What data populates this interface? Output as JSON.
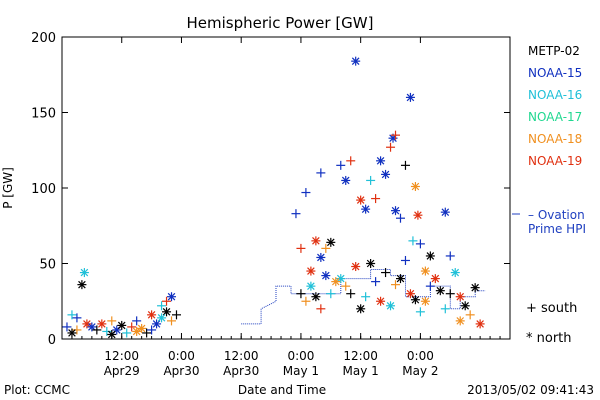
{
  "chart_data": {
    "type": "scatter",
    "title": "Hemispheric Power [GW]",
    "ylabel": "P [GW]",
    "xlabel": "Date and Time",
    "ylim": [
      0,
      200
    ],
    "y_ticks": [
      0,
      50,
      100,
      150,
      200
    ],
    "x_range_hours": [
      0,
      90
    ],
    "x_ticks": [
      {
        "h": 12,
        "top": "12:00",
        "bottom": "Apr29"
      },
      {
        "h": 24,
        "top": "0:00",
        "bottom": "Apr30"
      },
      {
        "h": 36,
        "top": "12:00",
        "bottom": "Apr30"
      },
      {
        "h": 48,
        "top": "0:00",
        "bottom": "May 1"
      },
      {
        "h": 60,
        "top": "12:00",
        "bottom": "May 1"
      },
      {
        "h": 72,
        "top": "0:00",
        "bottom": "May 2"
      }
    ],
    "series": [
      {
        "name": "METP-02",
        "color": "#000000"
      },
      {
        "name": "NOAA-15",
        "color": "#1030c0"
      },
      {
        "name": "NOAA-16",
        "color": "#20c0d8"
      },
      {
        "name": "NOAA-17",
        "color": "#20d890"
      },
      {
        "name": "NOAA-18",
        "color": "#f09020"
      },
      {
        "name": "NOAA-19",
        "color": "#e03010"
      }
    ],
    "ovation_label": [
      "– Ovation",
      "Prime HPI"
    ],
    "ovation_color": "#2040c0",
    "ovation": [
      [
        36,
        10
      ],
      [
        40,
        10
      ],
      [
        40,
        20
      ],
      [
        43,
        25
      ],
      [
        43,
        35
      ],
      [
        46,
        35
      ],
      [
        46,
        30
      ],
      [
        56,
        30
      ],
      [
        56,
        40
      ],
      [
        62,
        40
      ],
      [
        62,
        46
      ],
      [
        66,
        46
      ],
      [
        66,
        42
      ],
      [
        69,
        42
      ],
      [
        69,
        28
      ],
      [
        74,
        28
      ],
      [
        74,
        35
      ],
      [
        78,
        35
      ],
      [
        78,
        20
      ],
      [
        80,
        20
      ],
      [
        80,
        28
      ],
      [
        83,
        28
      ],
      [
        83,
        32
      ],
      [
        85,
        32
      ]
    ],
    "marker_legend": [
      {
        "symbol": "+",
        "label": "south"
      },
      {
        "symbol": "*",
        "label": "north"
      }
    ],
    "points": [
      {
        "x": 4,
        "y": 36,
        "s": "METP-02",
        "m": "*"
      },
      {
        "x": 3,
        "y": 14,
        "s": "NOAA-15",
        "m": "+"
      },
      {
        "x": 4.5,
        "y": 44,
        "s": "NOAA-16",
        "m": "*"
      },
      {
        "x": 5,
        "y": 10,
        "s": "NOAA-19",
        "m": "*"
      },
      {
        "x": 1,
        "y": 8,
        "s": "NOAA-15",
        "m": "+"
      },
      {
        "x": 2,
        "y": 16,
        "s": "NOAA-16",
        "m": "+"
      },
      {
        "x": 3,
        "y": 6,
        "s": "NOAA-18",
        "m": "+"
      },
      {
        "x": 2,
        "y": 4,
        "s": "METP-02",
        "m": "*"
      },
      {
        "x": 6,
        "y": 8,
        "s": "NOAA-15",
        "m": "*"
      },
      {
        "x": 7,
        "y": 6,
        "s": "METP-02",
        "m": "+"
      },
      {
        "x": 8,
        "y": 10,
        "s": "NOAA-19",
        "m": "*"
      },
      {
        "x": 9,
        "y": 5,
        "s": "NOAA-16",
        "m": "+"
      },
      {
        "x": 10,
        "y": 12,
        "s": "NOAA-18",
        "m": "+"
      },
      {
        "x": 11,
        "y": 6,
        "s": "NOAA-15",
        "m": "*"
      },
      {
        "x": 12,
        "y": 9,
        "s": "METP-02",
        "m": "*"
      },
      {
        "x": 13,
        "y": 4,
        "s": "NOAA-16",
        "m": "+"
      },
      {
        "x": 14,
        "y": 8,
        "s": "NOAA-19",
        "m": "+"
      },
      {
        "x": 15,
        "y": 12,
        "s": "NOAA-15",
        "m": "+"
      },
      {
        "x": 16,
        "y": 7,
        "s": "NOAA-18",
        "m": "*"
      },
      {
        "x": 17,
        "y": 4,
        "s": "METP-02",
        "m": "+"
      },
      {
        "x": 18,
        "y": 16,
        "s": "NOAA-19",
        "m": "*"
      },
      {
        "x": 19,
        "y": 10,
        "s": "NOAA-15",
        "m": "*"
      },
      {
        "x": 20,
        "y": 22,
        "s": "NOAA-16",
        "m": "+"
      },
      {
        "x": 21,
        "y": 18,
        "s": "METP-02",
        "m": "*"
      },
      {
        "x": 22,
        "y": 28,
        "s": "NOAA-15",
        "m": "*"
      },
      {
        "x": 22,
        "y": 12,
        "s": "NOAA-18",
        "m": "+"
      },
      {
        "x": 21,
        "y": 25,
        "s": "NOAA-19",
        "m": "+"
      },
      {
        "x": 20,
        "y": 14,
        "s": "NOAA-16",
        "m": "*"
      },
      {
        "x": 23,
        "y": 16,
        "s": "METP-02",
        "m": "+"
      },
      {
        "x": 18,
        "y": 6,
        "s": "NOAA-15",
        "m": "+"
      },
      {
        "x": 15,
        "y": 5,
        "s": "NOAA-18",
        "m": "*"
      },
      {
        "x": 10,
        "y": 3,
        "s": "METP-02",
        "m": "*"
      },
      {
        "x": 47,
        "y": 83,
        "s": "NOAA-15",
        "m": "+"
      },
      {
        "x": 49,
        "y": 97,
        "s": "NOAA-15",
        "m": "+"
      },
      {
        "x": 50,
        "y": 45,
        "s": "NOAA-19",
        "m": "*"
      },
      {
        "x": 48,
        "y": 60,
        "s": "NOAA-19",
        "m": "+"
      },
      {
        "x": 51,
        "y": 65,
        "s": "NOAA-19",
        "m": "*"
      },
      {
        "x": 52,
        "y": 54,
        "s": "NOAA-15",
        "m": "*"
      },
      {
        "x": 53,
        "y": 60,
        "s": "NOAA-18",
        "m": "+"
      },
      {
        "x": 54,
        "y": 64,
        "s": "METP-02",
        "m": "*"
      },
      {
        "x": 52,
        "y": 110,
        "s": "NOAA-15",
        "m": "+"
      },
      {
        "x": 56,
        "y": 115,
        "s": "NOAA-15",
        "m": "+"
      },
      {
        "x": 57,
        "y": 105,
        "s": "NOAA-15",
        "m": "*"
      },
      {
        "x": 58,
        "y": 118,
        "s": "NOAA-19",
        "m": "+"
      },
      {
        "x": 59,
        "y": 184,
        "s": "NOAA-15",
        "m": "*"
      },
      {
        "x": 60,
        "y": 92,
        "s": "NOAA-19",
        "m": "*"
      },
      {
        "x": 61,
        "y": 86,
        "s": "NOAA-15",
        "m": "*"
      },
      {
        "x": 62,
        "y": 105,
        "s": "NOAA-16",
        "m": "+"
      },
      {
        "x": 63,
        "y": 93,
        "s": "NOAA-19",
        "m": "+"
      },
      {
        "x": 64,
        "y": 118,
        "s": "NOAA-15",
        "m": "*"
      },
      {
        "x": 65,
        "y": 109,
        "s": "NOAA-15",
        "m": "*"
      },
      {
        "x": 66,
        "y": 127,
        "s": "NOAA-19",
        "m": "+"
      },
      {
        "x": 66.5,
        "y": 133,
        "s": "NOAA-15",
        "m": "*"
      },
      {
        "x": 67,
        "y": 135,
        "s": "NOAA-19",
        "m": "+"
      },
      {
        "x": 68,
        "y": 80,
        "s": "NOAA-15",
        "m": "+"
      },
      {
        "x": 69,
        "y": 115,
        "s": "METP-02",
        "m": "+"
      },
      {
        "x": 70,
        "y": 160,
        "s": "NOAA-15",
        "m": "*"
      },
      {
        "x": 71,
        "y": 101,
        "s": "NOAA-18",
        "m": "*"
      },
      {
        "x": 71.5,
        "y": 82,
        "s": "NOAA-19",
        "m": "*"
      },
      {
        "x": 72,
        "y": 63,
        "s": "NOAA-15",
        "m": "+"
      },
      {
        "x": 70.5,
        "y": 65,
        "s": "NOAA-16",
        "m": "+"
      },
      {
        "x": 73,
        "y": 45,
        "s": "NOAA-18",
        "m": "*"
      },
      {
        "x": 74,
        "y": 55,
        "s": "METP-02",
        "m": "*"
      },
      {
        "x": 67,
        "y": 85,
        "s": "NOAA-15",
        "m": "*"
      },
      {
        "x": 56,
        "y": 40,
        "s": "NOAA-16",
        "m": "*"
      },
      {
        "x": 57,
        "y": 35,
        "s": "NOAA-18",
        "m": "+"
      },
      {
        "x": 58,
        "y": 30,
        "s": "METP-02",
        "m": "+"
      },
      {
        "x": 59,
        "y": 48,
        "s": "NOAA-19",
        "m": "*"
      },
      {
        "x": 60,
        "y": 20,
        "s": "METP-02",
        "m": "*"
      },
      {
        "x": 61,
        "y": 28,
        "s": "NOAA-16",
        "m": "+"
      },
      {
        "x": 62,
        "y": 50,
        "s": "METP-02",
        "m": "*"
      },
      {
        "x": 63,
        "y": 38,
        "s": "NOAA-15",
        "m": "+"
      },
      {
        "x": 64,
        "y": 25,
        "s": "NOAA-19",
        "m": "*"
      },
      {
        "x": 65,
        "y": 44,
        "s": "METP-02",
        "m": "+"
      },
      {
        "x": 66,
        "y": 22,
        "s": "NOAA-16",
        "m": "*"
      },
      {
        "x": 67,
        "y": 36,
        "s": "NOAA-18",
        "m": "+"
      },
      {
        "x": 68,
        "y": 40,
        "s": "METP-02",
        "m": "*"
      },
      {
        "x": 69,
        "y": 52,
        "s": "NOAA-15",
        "m": "+"
      },
      {
        "x": 70,
        "y": 30,
        "s": "NOAA-19",
        "m": "*"
      },
      {
        "x": 71,
        "y": 26,
        "s": "METP-02",
        "m": "*"
      },
      {
        "x": 72,
        "y": 18,
        "s": "NOAA-16",
        "m": "+"
      },
      {
        "x": 73,
        "y": 25,
        "s": "NOAA-18",
        "m": "*"
      },
      {
        "x": 74,
        "y": 35,
        "s": "NOAA-15",
        "m": "+"
      },
      {
        "x": 75,
        "y": 40,
        "s": "NOAA-19",
        "m": "*"
      },
      {
        "x": 48,
        "y": 30,
        "s": "METP-02",
        "m": "+"
      },
      {
        "x": 49,
        "y": 25,
        "s": "NOAA-18",
        "m": "+"
      },
      {
        "x": 50,
        "y": 35,
        "s": "NOAA-16",
        "m": "*"
      },
      {
        "x": 51,
        "y": 28,
        "s": "METP-02",
        "m": "*"
      },
      {
        "x": 52,
        "y": 20,
        "s": "NOAA-19",
        "m": "+"
      },
      {
        "x": 53,
        "y": 42,
        "s": "NOAA-15",
        "m": "*"
      },
      {
        "x": 54,
        "y": 30,
        "s": "NOAA-16",
        "m": "+"
      },
      {
        "x": 55,
        "y": 38,
        "s": "NOAA-18",
        "m": "*"
      },
      {
        "x": 76,
        "y": 32,
        "s": "METP-02",
        "m": "*"
      },
      {
        "x": 77,
        "y": 84,
        "s": "NOAA-15",
        "m": "*"
      },
      {
        "x": 78,
        "y": 55,
        "s": "NOAA-15",
        "m": "+"
      },
      {
        "x": 78,
        "y": 30,
        "s": "METP-02",
        "m": "+"
      },
      {
        "x": 79,
        "y": 44,
        "s": "NOAA-16",
        "m": "*"
      },
      {
        "x": 80,
        "y": 28,
        "s": "NOAA-19",
        "m": "*"
      },
      {
        "x": 81,
        "y": 22,
        "s": "METP-02",
        "m": "*"
      },
      {
        "x": 82,
        "y": 16,
        "s": "NOAA-18",
        "m": "+"
      },
      {
        "x": 83,
        "y": 34,
        "s": "METP-02",
        "m": "*"
      },
      {
        "x": 84,
        "y": 10,
        "s": "NOAA-19",
        "m": "*"
      },
      {
        "x": 77,
        "y": 20,
        "s": "NOAA-16",
        "m": "+"
      },
      {
        "x": 80,
        "y": 12,
        "s": "NOAA-18",
        "m": "*"
      }
    ]
  },
  "footer": {
    "plot_by": "Plot: CCMC",
    "timestamp": "2013/05/02 09:41:43"
  }
}
